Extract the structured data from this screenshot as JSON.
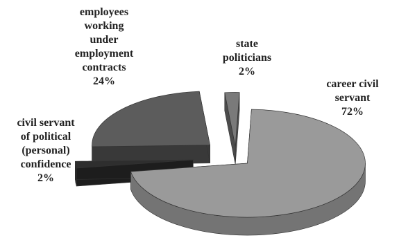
{
  "chart_data": {
    "type": "pie",
    "style": "3d-exploded",
    "title": "",
    "legend": "none",
    "series": [
      {
        "slices": [
          {
            "label_lines": [
              "career civil",
              "servant"
            ],
            "percent_label": "72%",
            "value": 72,
            "color": "#9a9a9a"
          },
          {
            "label_lines": [
              "civil servant",
              "of political",
              "(personal)",
              "confidence"
            ],
            "percent_label": "2%",
            "value": 2,
            "color": "#2e2e2e"
          },
          {
            "label_lines": [
              "employees",
              "working",
              "under",
              "employment",
              "contracts"
            ],
            "percent_label": "24%",
            "value": 24,
            "color": "#5c5c5c"
          },
          {
            "label_lines": [
              "state",
              "politicians"
            ],
            "percent_label": "2%",
            "value": 2,
            "color": "#7a7a7a"
          }
        ]
      }
    ]
  }
}
